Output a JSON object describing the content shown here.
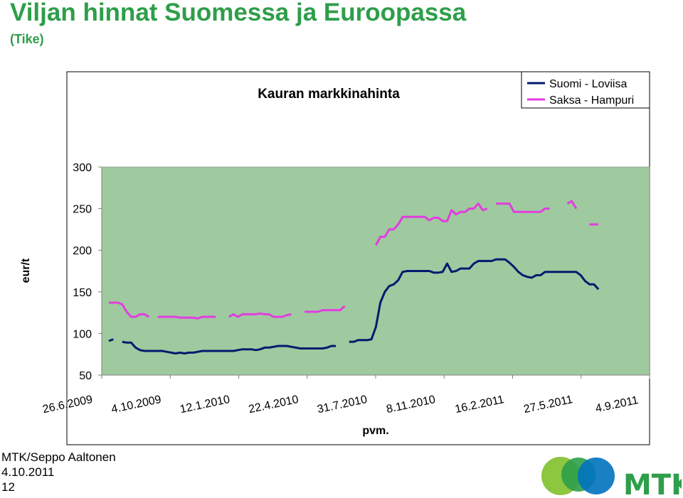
{
  "slide": {
    "title": "Viljan hinnat Suomessa ja Euroopassa",
    "subtitle": "(Tike)"
  },
  "footer": {
    "author": "MTK/Seppo Aaltonen",
    "date": "4.10.2011",
    "page": "12"
  },
  "logo": {
    "text": "MTK",
    "colors": [
      "#2e9e4a",
      "#8dc63f",
      "#0072bc"
    ]
  },
  "colors": {
    "plot_bg": "#9fc99f",
    "title_green": "#2e9e4a",
    "suomi": "#001a6e",
    "saksa": "#e23de0"
  },
  "chart_data": {
    "type": "line",
    "title": "Kauran markkinahinta",
    "xlabel": "pvm.",
    "ylabel": "eur/t",
    "ylim": [
      50,
      300
    ],
    "yticks": [
      50,
      100,
      150,
      200,
      250,
      300
    ],
    "xlim": [
      "2009-06-26",
      "2011-09-04"
    ],
    "xticks": [
      "26.6.2009",
      "4.10.2009",
      "12.1.2010",
      "22.4.2010",
      "31.7.2010",
      "8.11.2010",
      "16.2.2011",
      "27.5.2011",
      "4.9.2011"
    ],
    "legend_position": "top-right",
    "grid": false,
    "series": [
      {
        "name": "Suomi - Loviisa",
        "color": "#001a6e",
        "segments": [
          [
            [
              "2009-06-26",
              91
            ],
            [
              "2009-07-03",
              93
            ]
          ],
          [
            [
              "2009-07-17",
              90
            ],
            [
              "2009-07-24",
              89
            ],
            [
              "2009-07-31",
              89
            ],
            [
              "2009-08-07",
              83
            ],
            [
              "2009-08-14",
              80
            ],
            [
              "2009-08-21",
              79
            ],
            [
              "2009-08-28",
              79
            ],
            [
              "2009-09-04",
              79
            ],
            [
              "2009-09-11",
              79
            ],
            [
              "2009-09-18",
              79
            ],
            [
              "2009-09-25",
              78
            ],
            [
              "2009-10-02",
              77
            ],
            [
              "2009-10-09",
              76
            ],
            [
              "2009-10-16",
              77
            ],
            [
              "2009-10-23",
              76
            ],
            [
              "2009-10-30",
              77
            ],
            [
              "2009-11-06",
              77
            ],
            [
              "2009-11-13",
              78
            ],
            [
              "2009-11-20",
              79
            ],
            [
              "2009-11-27",
              79
            ],
            [
              "2009-12-04",
              79
            ],
            [
              "2009-12-11",
              79
            ],
            [
              "2009-12-18",
              79
            ],
            [
              "2009-12-25",
              79
            ],
            [
              "2010-01-01",
              79
            ],
            [
              "2010-01-08",
              79
            ],
            [
              "2010-01-15",
              80
            ],
            [
              "2010-01-22",
              81
            ],
            [
              "2010-01-29",
              81
            ],
            [
              "2010-02-05",
              81
            ],
            [
              "2010-02-12",
              80
            ],
            [
              "2010-02-19",
              81
            ],
            [
              "2010-02-26",
              83
            ],
            [
              "2010-03-05",
              83
            ],
            [
              "2010-03-12",
              84
            ],
            [
              "2010-03-19",
              85
            ],
            [
              "2010-03-26",
              85
            ],
            [
              "2010-04-02",
              85
            ],
            [
              "2010-04-09",
              84
            ],
            [
              "2010-04-16",
              83
            ],
            [
              "2010-04-23",
              82
            ],
            [
              "2010-04-30",
              82
            ],
            [
              "2010-05-07",
              82
            ],
            [
              "2010-05-14",
              82
            ],
            [
              "2010-05-21",
              82
            ],
            [
              "2010-05-28",
              82
            ],
            [
              "2010-06-04",
              83
            ],
            [
              "2010-06-11",
              85
            ],
            [
              "2010-06-18",
              85
            ]
          ],
          [
            [
              "2010-07-09",
              90
            ],
            [
              "2010-07-16",
              90
            ],
            [
              "2010-07-23",
              92
            ],
            [
              "2010-07-30",
              92
            ],
            [
              "2010-08-06",
              92
            ],
            [
              "2010-08-13",
              93
            ],
            [
              "2010-08-20",
              108
            ],
            [
              "2010-08-27",
              137
            ],
            [
              "2010-09-03",
              150
            ],
            [
              "2010-09-10",
              157
            ],
            [
              "2010-09-17",
              159
            ],
            [
              "2010-09-24",
              164
            ],
            [
              "2010-10-01",
              174
            ],
            [
              "2010-10-08",
              175
            ],
            [
              "2010-10-15",
              175
            ],
            [
              "2010-10-22",
              175
            ],
            [
              "2010-10-29",
              175
            ],
            [
              "2010-11-05",
              175
            ],
            [
              "2010-11-12",
              175
            ],
            [
              "2010-11-19",
              173
            ],
            [
              "2010-11-26",
              173
            ],
            [
              "2010-12-03",
              174
            ],
            [
              "2010-12-10",
              184
            ],
            [
              "2010-12-17",
              174
            ],
            [
              "2010-12-24",
              175
            ],
            [
              "2010-12-31",
              178
            ],
            [
              "2011-01-07",
              178
            ],
            [
              "2011-01-14",
              178
            ],
            [
              "2011-01-21",
              184
            ],
            [
              "2011-01-28",
              187
            ],
            [
              "2011-02-04",
              187
            ],
            [
              "2011-02-11",
              187
            ],
            [
              "2011-02-18",
              187
            ],
            [
              "2011-02-25",
              189
            ],
            [
              "2011-03-04",
              189
            ],
            [
              "2011-03-11",
              189
            ],
            [
              "2011-03-18",
              185
            ],
            [
              "2011-03-25",
              180
            ],
            [
              "2011-04-01",
              174
            ],
            [
              "2011-04-08",
              170
            ],
            [
              "2011-04-15",
              168
            ],
            [
              "2011-04-22",
              167
            ],
            [
              "2011-04-29",
              170
            ],
            [
              "2011-05-06",
              170
            ],
            [
              "2011-05-13",
              174
            ],
            [
              "2011-05-20",
              174
            ],
            [
              "2011-05-27",
              174
            ],
            [
              "2011-06-03",
              174
            ],
            [
              "2011-06-10",
              174
            ],
            [
              "2011-06-17",
              174
            ],
            [
              "2011-06-24",
              174
            ],
            [
              "2011-07-01",
              174
            ],
            [
              "2011-07-08",
              170
            ],
            [
              "2011-07-15",
              163
            ],
            [
              "2011-07-22",
              159
            ],
            [
              "2011-07-29",
              159
            ],
            [
              "2011-08-05",
              153
            ]
          ]
        ]
      },
      {
        "name": "Saksa - Hampuri",
        "color": "#e23de0",
        "segments": [
          [
            [
              "2009-06-26",
              137
            ],
            [
              "2009-07-03",
              137
            ],
            [
              "2009-07-10",
              137
            ],
            [
              "2009-07-17",
              135
            ],
            [
              "2009-07-24",
              126
            ],
            [
              "2009-07-31",
              120
            ],
            [
              "2009-08-07",
              120
            ],
            [
              "2009-08-14",
              123
            ],
            [
              "2009-08-21",
              123
            ],
            [
              "2009-08-28",
              120
            ]
          ],
          [
            [
              "2009-09-11",
              120
            ],
            [
              "2009-09-18",
              120
            ],
            [
              "2009-09-25",
              120
            ],
            [
              "2009-10-02",
              120
            ],
            [
              "2009-10-09",
              120
            ],
            [
              "2009-10-16",
              119
            ],
            [
              "2009-10-23",
              119
            ],
            [
              "2009-10-30",
              119
            ],
            [
              "2009-11-06",
              119
            ],
            [
              "2009-11-13",
              118
            ],
            [
              "2009-11-20",
              120
            ],
            [
              "2009-11-27",
              120
            ],
            [
              "2009-12-04",
              120
            ],
            [
              "2009-12-11",
              120
            ]
          ],
          [
            [
              "2010-01-01",
              120
            ],
            [
              "2010-01-08",
              123
            ],
            [
              "2010-01-15",
              120
            ],
            [
              "2010-01-22",
              123
            ],
            [
              "2010-01-29",
              123
            ],
            [
              "2010-02-05",
              123
            ],
            [
              "2010-02-12",
              123
            ],
            [
              "2010-02-19",
              124
            ],
            [
              "2010-02-26",
              123
            ],
            [
              "2010-03-05",
              123
            ],
            [
              "2010-03-12",
              120
            ],
            [
              "2010-03-19",
              120
            ],
            [
              "2010-03-26",
              120
            ],
            [
              "2010-04-02",
              122
            ],
            [
              "2010-04-09",
              123
            ]
          ],
          [
            [
              "2010-04-30",
              126
            ],
            [
              "2010-05-07",
              126
            ],
            [
              "2010-05-14",
              126
            ],
            [
              "2010-05-21",
              126
            ],
            [
              "2010-05-28",
              128
            ],
            [
              "2010-06-04",
              128
            ],
            [
              "2010-06-11",
              128
            ],
            [
              "2010-06-18",
              128
            ],
            [
              "2010-06-25",
              128
            ],
            [
              "2010-07-02",
              133
            ]
          ],
          [
            [
              "2010-08-20",
              206
            ],
            [
              "2010-08-27",
              216
            ],
            [
              "2010-09-03",
              216
            ],
            [
              "2010-09-10",
              225
            ],
            [
              "2010-09-17",
              225
            ],
            [
              "2010-09-24",
              231
            ],
            [
              "2010-10-01",
              240
            ],
            [
              "2010-10-08",
              240
            ],
            [
              "2010-10-15",
              240
            ],
            [
              "2010-10-22",
              240
            ],
            [
              "2010-10-29",
              240
            ],
            [
              "2010-11-05",
              240
            ],
            [
              "2010-11-12",
              236
            ],
            [
              "2010-11-19",
              239
            ],
            [
              "2010-11-26",
              239
            ],
            [
              "2010-12-03",
              235
            ],
            [
              "2010-12-10",
              235
            ],
            [
              "2010-12-17",
              248
            ],
            [
              "2010-12-24",
              243
            ],
            [
              "2010-12-31",
              246
            ],
            [
              "2011-01-07",
              246
            ],
            [
              "2011-01-14",
              250
            ],
            [
              "2011-01-21",
              250
            ],
            [
              "2011-01-28",
              256
            ],
            [
              "2011-02-04",
              248
            ],
            [
              "2011-02-11",
              250
            ]
          ],
          [
            [
              "2011-02-25",
              256
            ],
            [
              "2011-03-04",
              256
            ],
            [
              "2011-03-11",
              256
            ],
            [
              "2011-03-18",
              256
            ],
            [
              "2011-03-25",
              246
            ],
            [
              "2011-04-01",
              246
            ],
            [
              "2011-04-08",
              246
            ],
            [
              "2011-04-15",
              246
            ],
            [
              "2011-04-22",
              246
            ],
            [
              "2011-04-29",
              246
            ],
            [
              "2011-05-06",
              246
            ],
            [
              "2011-05-13",
              250
            ],
            [
              "2011-05-20",
              250
            ]
          ],
          [
            [
              "2011-06-17",
              256
            ],
            [
              "2011-06-24",
              259
            ],
            [
              "2011-07-01",
              250
            ]
          ],
          [
            [
              "2011-07-22",
              231
            ],
            [
              "2011-07-29",
              231
            ],
            [
              "2011-08-05",
              231
            ]
          ]
        ]
      }
    ]
  }
}
